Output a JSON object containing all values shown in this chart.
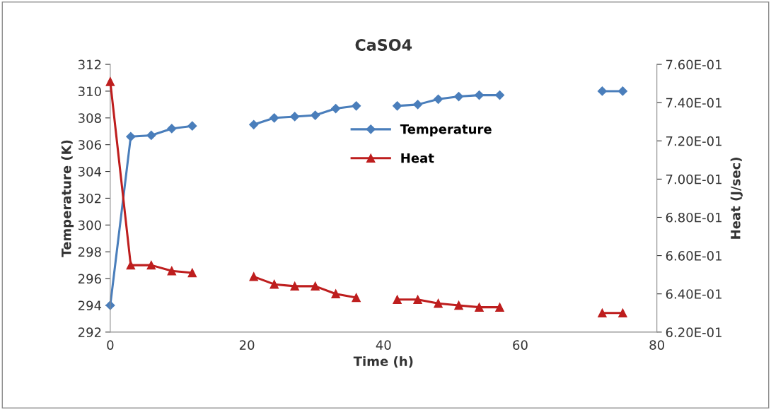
{
  "chart_data": {
    "type": "line",
    "title": "CaSO4",
    "xlabel": "Time (h)",
    "ylabel": "Temperature (K)",
    "y2label": "Heat (J/sec)",
    "x": [
      0,
      3,
      6,
      9,
      12,
      15,
      18,
      21,
      24,
      27,
      30,
      33,
      36,
      39,
      42,
      45,
      48,
      51,
      54,
      57,
      60,
      63,
      66,
      69,
      72,
      75
    ],
    "series": [
      {
        "name": "Temperature",
        "color": "#4a7ebb",
        "marker": "diamond",
        "values": [
          294.0,
          306.6,
          306.7,
          307.2,
          307.4,
          null,
          null,
          307.5,
          308.0,
          308.1,
          308.2,
          308.7,
          308.9,
          null,
          308.9,
          309.0,
          309.4,
          309.6,
          309.7,
          309.7,
          null,
          null,
          null,
          null,
          310.0,
          310.0
        ]
      },
      {
        "name": "Heat",
        "color": "#be1e1e",
        "marker": "triangle",
        "axis": "y2",
        "values": [
          0.751,
          0.655,
          0.655,
          0.652,
          0.651,
          null,
          null,
          0.649,
          0.645,
          0.644,
          0.644,
          0.64,
          0.638,
          null,
          0.637,
          0.637,
          0.635,
          0.634,
          0.633,
          0.633,
          null,
          null,
          null,
          null,
          0.63,
          0.63
        ]
      }
    ],
    "xlim": [
      0,
      80
    ],
    "xticks": [
      0,
      20,
      40,
      60,
      80
    ],
    "ylim": [
      292,
      312
    ],
    "yticks": [
      292,
      294,
      296,
      298,
      300,
      302,
      304,
      306,
      308,
      310,
      312
    ],
    "y2lim": [
      0.62,
      0.76
    ],
    "y2ticks": [
      {
        "value": 0.62,
        "label": "6.20E-01"
      },
      {
        "value": 0.64,
        "label": "6.40E-01"
      },
      {
        "value": 0.66,
        "label": "6.60E-01"
      },
      {
        "value": 0.68,
        "label": "6.80E-01"
      },
      {
        "value": 0.7,
        "label": "7.00E-01"
      },
      {
        "value": 0.72,
        "label": "7.20E-01"
      },
      {
        "value": 0.74,
        "label": "7.40E-01"
      },
      {
        "value": 0.76,
        "label": "7.60E-01"
      }
    ],
    "grid": false,
    "legend": "center",
    "line_style": "solid"
  }
}
